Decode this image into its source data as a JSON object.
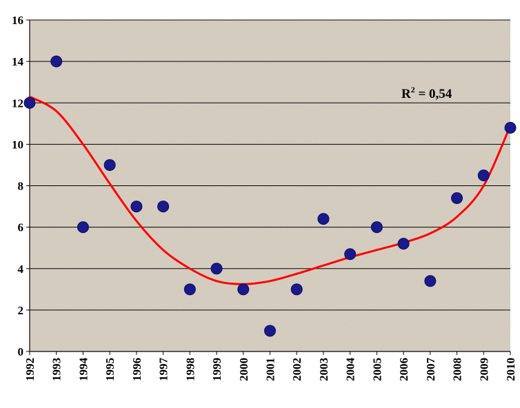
{
  "chart_data": {
    "type": "scatter",
    "title": "",
    "xlabel": "",
    "ylabel": "",
    "categories": [
      "1992",
      "1993",
      "1994",
      "1995",
      "1996",
      "1997",
      "1998",
      "1999",
      "2000",
      "2001",
      "2002",
      "2003",
      "2004",
      "2005",
      "2006",
      "2007",
      "2008",
      "2009",
      "2010"
    ],
    "series": [
      {
        "values": [
          12,
          14,
          6,
          9,
          7,
          7,
          3,
          4,
          3,
          1,
          3,
          6.4,
          4.7,
          6,
          5.2,
          3.4,
          7.4,
          8.5,
          10.8
        ],
        "color": "#1a1a8c"
      }
    ],
    "trendline": {
      "type": "polynomial",
      "color": "#ff0000",
      "points": [
        [
          1992,
          12.3
        ],
        [
          1993,
          11.6
        ],
        [
          1994,
          10.0
        ],
        [
          1995,
          8.1
        ],
        [
          1996,
          6.3
        ],
        [
          1997,
          4.9
        ],
        [
          1998,
          4.0
        ],
        [
          1999,
          3.4
        ],
        [
          2000,
          3.25
        ],
        [
          2001,
          3.4
        ],
        [
          2002,
          3.75
        ],
        [
          2003,
          4.15
        ],
        [
          2004,
          4.55
        ],
        [
          2005,
          4.9
        ],
        [
          2006,
          5.25
        ],
        [
          2007,
          5.7
        ],
        [
          2008,
          6.5
        ],
        [
          2009,
          8.0
        ],
        [
          2010,
          10.9
        ]
      ]
    },
    "annotation": {
      "base": "R",
      "sup": "2",
      "rest": " = 0,54"
    },
    "ylim": [
      0,
      16
    ],
    "yticks": [
      0,
      2,
      4,
      6,
      8,
      10,
      12,
      14,
      16
    ],
    "grid": true,
    "plot_background": "#d8d0c3",
    "gridline_color": "#000000"
  }
}
